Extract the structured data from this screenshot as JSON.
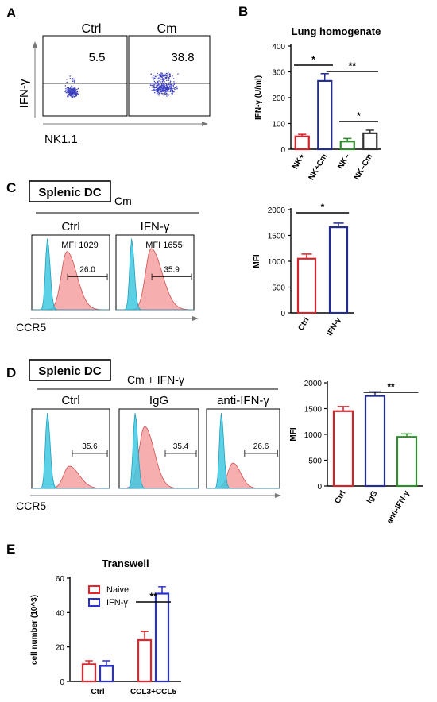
{
  "panels": {
    "A": {
      "label": "A",
      "xlabel": "NK1.1",
      "ylabel": "IFN-γ",
      "plots": [
        {
          "title": "Ctrl",
          "value": "5.5"
        },
        {
          "title": "Cm",
          "value": "38.8"
        }
      ]
    },
    "C": {
      "label": "C",
      "box_label": "Splenic DC",
      "treatment": "Cm",
      "xlabel": "CCR5",
      "histograms": [
        {
          "title": "Ctrl",
          "mfi": "MFI 1029",
          "gate": "26.0"
        },
        {
          "title": "IFN-γ",
          "mfi": "MFI 1655",
          "gate": "35.9"
        }
      ]
    },
    "D": {
      "label": "D",
      "box_label": "Splenic DC",
      "treatment": "Cm + IFN-γ",
      "xlabel": "CCR5",
      "histograms": [
        {
          "title": "Ctrl",
          "gate": "35.6"
        },
        {
          "title": "IgG",
          "gate": "35.4"
        },
        {
          "title": "anti-IFN-γ",
          "gate": "26.6"
        }
      ]
    }
  },
  "chart_data": [
    {
      "id": "B",
      "panel_label": "B",
      "type": "bar",
      "title": "Lung homogenate",
      "ylabel": "IFN-γ (U/ml)",
      "ylim": [
        0,
        400
      ],
      "yticks": [
        0,
        100,
        200,
        300,
        400
      ],
      "categories": [
        "NK+",
        "NK+Cm",
        "NK–",
        "NK–Cm"
      ],
      "values": [
        50,
        265,
        30,
        62
      ],
      "errors": [
        8,
        28,
        12,
        12
      ],
      "colors": [
        "#d4232b",
        "#232c8f",
        "#2e8b2e",
        "#333333"
      ],
      "significance": [
        {
          "from": 0,
          "to": 1,
          "label": "*"
        },
        {
          "from": 1,
          "to": 3,
          "label": "**"
        },
        {
          "from": 2,
          "to": 3,
          "label": "*"
        }
      ]
    },
    {
      "id": "C",
      "type": "bar",
      "ylabel": "MFI",
      "ylim": [
        0,
        2000
      ],
      "yticks": [
        0,
        500,
        1000,
        1500,
        2000
      ],
      "categories": [
        "Ctrl",
        "IFN-γ"
      ],
      "values": [
        1050,
        1660
      ],
      "errors": [
        90,
        80
      ],
      "colors": [
        "#d4232b",
        "#232c8f"
      ],
      "significance": [
        {
          "from": 0,
          "to": 1,
          "label": "*"
        }
      ]
    },
    {
      "id": "D",
      "type": "bar",
      "ylabel": "MFI",
      "ylim": [
        0,
        2000
      ],
      "yticks": [
        0,
        500,
        1000,
        1500,
        2000
      ],
      "categories": [
        "Ctrl",
        "IgG",
        "anti-IFN-γ"
      ],
      "values": [
        1450,
        1745,
        950
      ],
      "errors": [
        90,
        80,
        60
      ],
      "colors": [
        "#d4232b",
        "#232c8f",
        "#2e8b2e"
      ],
      "significance": [
        {
          "from": 1,
          "to": 2,
          "label": "**"
        }
      ]
    },
    {
      "id": "E",
      "panel_label": "E",
      "type": "bar",
      "title": "Transwell",
      "ylabel": "cell number (10^3)",
      "ylim": [
        0,
        60
      ],
      "yticks": [
        0,
        20,
        40,
        60
      ],
      "categories": [
        "Ctrl",
        "CCL3+CCL5"
      ],
      "series": [
        {
          "name": "Naive",
          "color": "#e8232b",
          "values": [
            10,
            24
          ],
          "errors": [
            2,
            5
          ]
        },
        {
          "name": "IFN-γ",
          "color": "#2a2fd0",
          "values": [
            9,
            51
          ],
          "errors": [
            3,
            4
          ]
        }
      ],
      "legend": "top-left",
      "significance": [
        {
          "category": 1,
          "label": "**"
        }
      ]
    }
  ]
}
